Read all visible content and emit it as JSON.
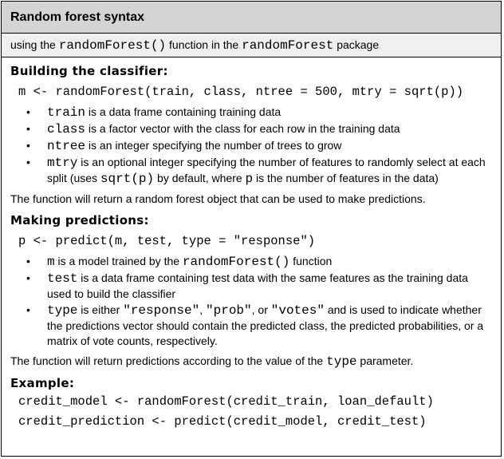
{
  "header": {
    "title": "Random forest syntax"
  },
  "subheader": {
    "pre": "using the ",
    "func": "randomForest()",
    "mid": " function in the ",
    "pkg": "randomForest",
    "post": " package"
  },
  "building": {
    "heading": "Building the classifier:",
    "code": "m <- randomForest(train, class, ntree = 500, mtry = sqrt(p))",
    "bullets": [
      {
        "term": "train",
        "text": " is a data frame containing training data"
      },
      {
        "term": "class",
        "text": " is a factor vector with the class for each row in the training data"
      },
      {
        "term": "ntree",
        "text": " is an integer specifying the number of trees to grow"
      }
    ],
    "mtry": {
      "term": "mtry",
      "text1": " is an optional integer specifying the number of features to randomly select at each split (uses ",
      "code1": "sqrt(p)",
      "text2": " by default, where ",
      "code2": "p",
      "text3": " is the number of features in the data)"
    },
    "return": "The function will return a random forest object that can be used to make predictions."
  },
  "predicting": {
    "heading": "Making predictions:",
    "code": "p <- predict(m, test, type = \"response\")",
    "b1": {
      "term": "m",
      "text1": " is a model trained by the ",
      "code": "randomForest()",
      "text2": "  function"
    },
    "b2": {
      "term": "test",
      "text": " is a data frame containing test data with the same features as the training data used to build the classifier"
    },
    "b3": {
      "term": "type",
      "text1": " is either ",
      "opt1": "\"response\"",
      "sep1": ", ",
      "opt2": "\"prob\"",
      "sep2": ", or ",
      "opt3": "\"votes\"",
      "text2": " and is used to indicate whether the predictions vector should contain the predicted class, the predicted probabilities, or a matrix of vote counts, respectively."
    },
    "return_pre": "The function will return predictions according to the value of the ",
    "return_code": "type",
    "return_post": " parameter."
  },
  "example": {
    "heading": "Example:",
    "line1": "credit_model <- randomForest(credit_train, loan_default)",
    "line2": "credit_prediction <- predict(credit_model, credit_test)"
  }
}
